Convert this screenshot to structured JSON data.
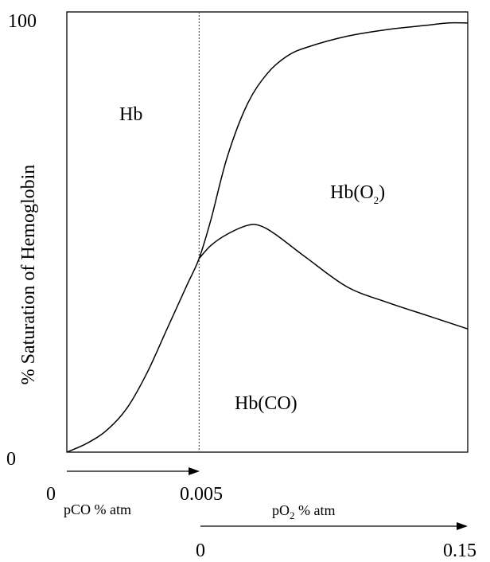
{
  "chart_data": {
    "type": "line",
    "title": "",
    "ylabel": "% Saturation of Hemoglobin",
    "ylim": [
      0,
      100
    ],
    "y_ticks": [
      "100",
      "0"
    ],
    "grid": false,
    "legend": "none",
    "colors": {
      "line": "#000000",
      "divider": "#555555",
      "background": "#ffffff"
    },
    "divider": {
      "x_fraction": 0.33,
      "style": "dotted"
    },
    "axes": {
      "pco": {
        "label": "pCO % atm",
        "range": [
          0,
          0.005
        ],
        "tick_labels": [
          "0",
          "0.005"
        ]
      },
      "po2": {
        "label_prefix": "pO",
        "label_sub": "2",
        "label_suffix": " % atm",
        "range": [
          0,
          0.15
        ],
        "tick_labels": [
          "0",
          "0.15"
        ]
      }
    },
    "region_labels": {
      "hb": "Hb",
      "hbo2_prefix": "Hb(O",
      "hbo2_sub": "2",
      "hbo2_suffix": ")",
      "hbco": "Hb(CO)"
    },
    "series": [
      {
        "id": "hb_total",
        "x_fraction": [
          0,
          0.05,
          0.1,
          0.15,
          0.2,
          0.25,
          0.3,
          0.33,
          0.36,
          0.4,
          0.45,
          0.5,
          0.55,
          0.6,
          0.7,
          0.8,
          0.9,
          0.95,
          1.0
        ],
        "y": [
          0,
          2,
          5,
          10,
          18,
          28,
          38,
          44,
          53,
          67,
          79,
          86,
          90,
          92,
          94.5,
          96,
          97,
          97.5,
          97.5
        ]
      },
      {
        "id": "hbco",
        "x_fraction": [
          0.33,
          0.36,
          0.4,
          0.45,
          0.48,
          0.52,
          0.6,
          0.7,
          0.8,
          0.9,
          1.0
        ],
        "y": [
          44,
          47,
          49.5,
          51.5,
          51.5,
          49.5,
          44,
          37.5,
          34,
          31,
          28
        ]
      }
    ]
  }
}
